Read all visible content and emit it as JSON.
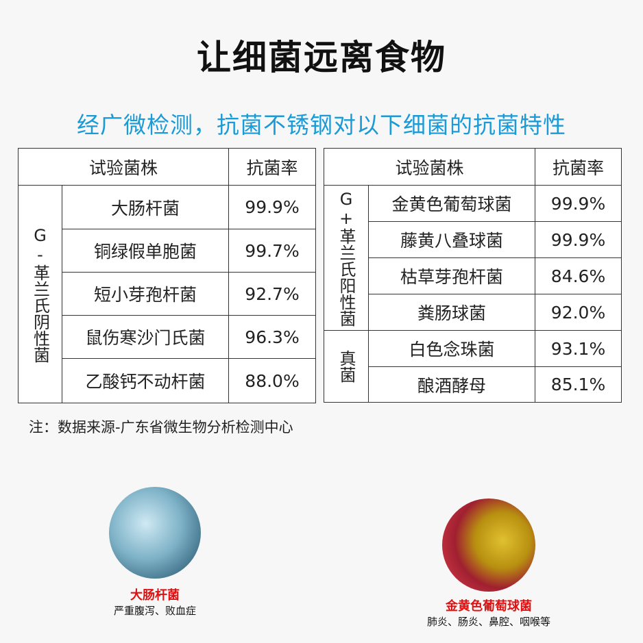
{
  "title": "让细菌远离食物",
  "subtitle": "经广微检测，抗菌不锈钢对以下细菌的抗菌特性",
  "left_table": {
    "header_strain": "试验菌株",
    "header_rate": "抗菌率",
    "group": "G-革兰氏阴性菌",
    "rows": [
      {
        "name": "大肠杆菌",
        "rate": "99.9%"
      },
      {
        "name": "铜绿假单胞菌",
        "rate": "99.7%"
      },
      {
        "name": "短小芽孢杆菌",
        "rate": "92.7%"
      },
      {
        "name": "鼠伤寒沙门氏菌",
        "rate": "96.3%"
      },
      {
        "name": "乙酸钙不动杆菌",
        "rate": "88.0%"
      }
    ]
  },
  "right_table": {
    "header_strain": "试验菌株",
    "header_rate": "抗菌率",
    "group1": "G+革兰氏阳性菌",
    "group2": "真菌",
    "rows": [
      {
        "name": "金黄色葡萄球菌",
        "rate": "99.9%"
      },
      {
        "name": "藤黄八叠球菌",
        "rate": "99.9%"
      },
      {
        "name": "枯草芽孢杆菌",
        "rate": "84.6%"
      },
      {
        "name": "粪肠球菌",
        "rate": "92.0%"
      },
      {
        "name": "白色念珠菌",
        "rate": "93.1%"
      },
      {
        "name": "酿酒酵母",
        "rate": "85.1%"
      }
    ]
  },
  "note": "注：数据来源-广东省微生物分析检测中心",
  "captions": [
    {
      "name": "大肠杆菌",
      "desc": "严重腹泻、败血症"
    },
    {
      "name": "金黄色葡萄球菌",
      "desc": "肺炎、肠炎、鼻腔、咽喉等"
    }
  ],
  "colors": {
    "subtitle": "#1a9ad6",
    "caption_name": "#e01010"
  }
}
